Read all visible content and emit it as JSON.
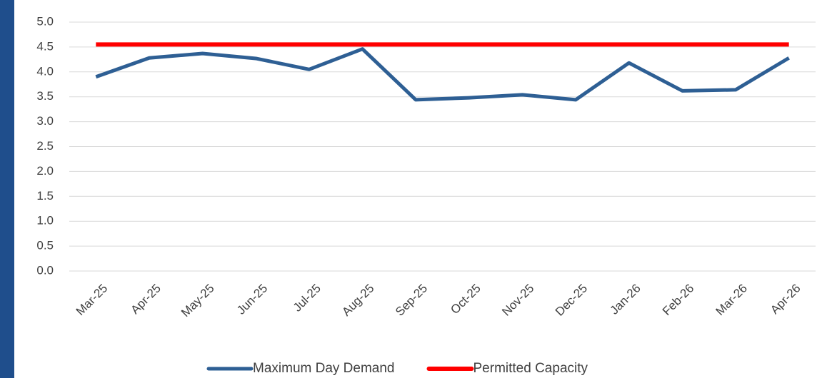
{
  "chart_data": {
    "type": "line",
    "categories": [
      "Mar-25",
      "Apr-25",
      "May-25",
      "Jun-25",
      "Jul-25",
      "Aug-25",
      "Sep-25",
      "Oct-25",
      "Nov-25",
      "Dec-25",
      "Jan-26",
      "Feb-26",
      "Mar-26",
      "Apr-26"
    ],
    "series": [
      {
        "name": "Maximum Day Demand",
        "color": "#2e5f94",
        "values": [
          3.9,
          4.28,
          4.37,
          4.27,
          4.05,
          4.46,
          3.44,
          3.48,
          3.54,
          3.44,
          4.18,
          3.62,
          3.64,
          4.28
        ]
      },
      {
        "name": "Permitted Capacity",
        "color": "#ff0000",
        "values": [
          4.55,
          4.55,
          4.55,
          4.55,
          4.55,
          4.55,
          4.55,
          4.55,
          4.55,
          4.55,
          4.55,
          4.55,
          4.55,
          4.55
        ]
      }
    ],
    "ylim": [
      0,
      5
    ],
    "yticks": [
      {
        "value": 0,
        "label": "0.0"
      },
      {
        "value": 0.5,
        "label": "0.5"
      },
      {
        "value": 1,
        "label": "1.0"
      },
      {
        "value": 1.5,
        "label": "1.5"
      },
      {
        "value": 2,
        "label": "2.0"
      },
      {
        "value": 2.5,
        "label": "2.5"
      },
      {
        "value": 3,
        "label": "3.0"
      },
      {
        "value": 3.5,
        "label": "3.5"
      },
      {
        "value": 4,
        "label": "4.0"
      },
      {
        "value": 4.5,
        "label": "4.5"
      },
      {
        "value": 5,
        "label": "5.0"
      }
    ],
    "grid": true,
    "legend": "bottom"
  }
}
